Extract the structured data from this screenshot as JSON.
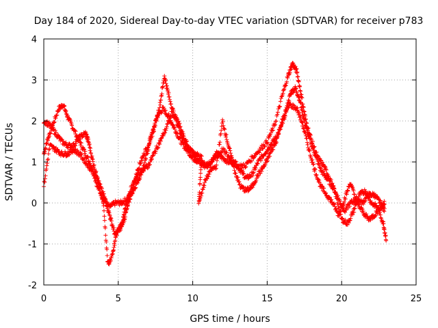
{
  "chart_data": {
    "type": "scatter",
    "title": "Day 184 of 2020, Sidereal Day-to-day VTEC variation (SDTVAR) for receiver p783",
    "xlabel": "GPS time / hours",
    "ylabel": "SDTVAR / TECUs",
    "xlim": [
      0,
      25
    ],
    "ylim": [
      -2,
      4
    ],
    "xticks": [
      "0",
      "5",
      "10",
      "15",
      "20",
      "25"
    ],
    "yticks": [
      "-2",
      "-1",
      "0",
      "1",
      "2",
      "3",
      "4"
    ],
    "grid": true,
    "marker": "+",
    "series": [
      {
        "name": "SDTVAR",
        "color": "#ff0000",
        "tracks": [
          [
            [
              0.0,
              1.2
            ],
            [
              0.3,
              1.6
            ],
            [
              0.6,
              1.9
            ],
            [
              1.0,
              2.3
            ],
            [
              1.3,
              2.4
            ],
            [
              1.6,
              2.1
            ],
            [
              2.0,
              1.8
            ],
            [
              2.4,
              1.5
            ],
            [
              2.8,
              1.2
            ],
            [
              3.2,
              0.9
            ],
            [
              3.6,
              0.4
            ],
            [
              4.0,
              0.1
            ],
            [
              4.4,
              -0.1
            ],
            [
              4.8,
              0.0
            ],
            [
              5.2,
              0.0
            ],
            [
              5.6,
              0.1
            ],
            [
              6.0,
              0.3
            ],
            [
              6.4,
              0.6
            ],
            [
              6.8,
              1.0
            ],
            [
              7.2,
              1.6
            ],
            [
              7.6,
              2.1
            ],
            [
              8.0,
              2.3
            ],
            [
              8.4,
              2.1
            ],
            [
              8.8,
              1.8
            ],
            [
              9.2,
              1.5
            ],
            [
              9.6,
              1.3
            ],
            [
              10.0,
              1.1
            ],
            [
              10.4,
              1.0
            ],
            [
              10.8,
              0.9
            ],
            [
              11.2,
              1.0
            ],
            [
              11.6,
              1.2
            ],
            [
              12.0,
              1.1
            ],
            [
              12.4,
              1.0
            ],
            [
              12.8,
              1.0
            ],
            [
              13.2,
              0.8
            ],
            [
              13.6,
              0.6
            ],
            [
              14.0,
              0.7
            ],
            [
              14.4,
              1.0
            ],
            [
              14.8,
              1.2
            ],
            [
              15.2,
              1.4
            ],
            [
              15.6,
              1.6
            ],
            [
              16.0,
              1.9
            ],
            [
              16.3,
              2.3
            ],
            [
              16.6,
              2.7
            ],
            [
              16.9,
              2.8
            ],
            [
              17.2,
              2.5
            ],
            [
              17.5,
              2.0
            ],
            [
              17.8,
              1.6
            ],
            [
              18.2,
              1.2
            ],
            [
              18.6,
              0.8
            ],
            [
              19.0,
              0.6
            ],
            [
              19.4,
              0.4
            ],
            [
              19.8,
              0.1
            ],
            [
              20.2,
              -0.2
            ],
            [
              20.6,
              0.0
            ],
            [
              21.0,
              0.1
            ],
            [
              21.4,
              0.0
            ],
            [
              21.8,
              0.2
            ],
            [
              22.2,
              0.2
            ],
            [
              22.6,
              0.0
            ],
            [
              22.9,
              -0.2
            ]
          ],
          [
            [
              0.0,
              2.0
            ],
            [
              0.4,
              1.9
            ],
            [
              0.8,
              1.7
            ],
            [
              1.2,
              1.5
            ],
            [
              1.6,
              1.4
            ],
            [
              2.0,
              1.4
            ],
            [
              2.4,
              1.6
            ],
            [
              2.8,
              1.7
            ],
            [
              3.0,
              1.5
            ],
            [
              3.3,
              1.0
            ],
            [
              3.6,
              0.6
            ],
            [
              3.9,
              0.3
            ],
            [
              4.2,
              0.0
            ],
            [
              4.5,
              -0.4
            ],
            [
              4.8,
              -0.8
            ],
            [
              5.1,
              -0.6
            ],
            [
              5.4,
              -0.4
            ],
            [
              5.7,
              0.0
            ],
            [
              6.0,
              0.4
            ],
            [
              6.3,
              0.8
            ],
            [
              6.6,
              1.1
            ],
            [
              7.0,
              1.4
            ],
            [
              7.4,
              1.8
            ],
            [
              7.8,
              2.4
            ],
            [
              8.1,
              3.1
            ],
            [
              8.4,
              2.6
            ],
            [
              8.8,
              2.1
            ],
            [
              9.2,
              1.7
            ],
            [
              9.6,
              1.4
            ],
            [
              10.0,
              1.2
            ],
            [
              10.5,
              1.0
            ],
            [
              11.0,
              0.9
            ],
            [
              11.5,
              1.1
            ],
            [
              12.0,
              1.3
            ],
            [
              12.5,
              1.1
            ],
            [
              13.0,
              0.9
            ],
            [
              13.5,
              0.9
            ],
            [
              14.0,
              1.1
            ],
            [
              14.5,
              1.3
            ],
            [
              15.0,
              1.5
            ],
            [
              15.5,
              1.9
            ],
            [
              16.0,
              2.6
            ],
            [
              16.4,
              3.1
            ],
            [
              16.7,
              3.4
            ],
            [
              17.0,
              3.2
            ],
            [
              17.3,
              2.6
            ],
            [
              17.6,
              2.0
            ],
            [
              18.0,
              1.5
            ],
            [
              18.4,
              1.1
            ],
            [
              18.8,
              0.9
            ],
            [
              19.2,
              0.6
            ],
            [
              19.6,
              0.2
            ],
            [
              20.0,
              -0.4
            ],
            [
              20.4,
              -0.5
            ],
            [
              20.8,
              -0.2
            ],
            [
              21.2,
              0.2
            ],
            [
              21.6,
              0.3
            ],
            [
              22.0,
              0.0
            ],
            [
              22.4,
              -0.1
            ],
            [
              22.8,
              -0.5
            ],
            [
              23.0,
              -0.9
            ]
          ],
          [
            [
              0.0,
              0.4
            ],
            [
              0.4,
              1.4
            ],
            [
              0.8,
              1.3
            ],
            [
              1.2,
              1.2
            ],
            [
              1.6,
              1.2
            ],
            [
              2.0,
              1.3
            ],
            [
              2.4,
              1.2
            ],
            [
              2.8,
              1.0
            ],
            [
              3.2,
              0.8
            ],
            [
              3.6,
              0.6
            ],
            [
              4.0,
              0.0
            ],
            [
              4.3,
              -1.5
            ],
            [
              4.6,
              -1.3
            ],
            [
              4.9,
              -0.7
            ],
            [
              5.2,
              -0.6
            ],
            [
              5.5,
              -0.1
            ],
            [
              5.8,
              0.3
            ],
            [
              6.2,
              0.6
            ],
            [
              6.6,
              0.8
            ],
            [
              7.0,
              0.9
            ],
            [
              7.4,
              1.2
            ],
            [
              7.8,
              1.5
            ],
            [
              8.2,
              1.8
            ],
            [
              8.6,
              2.2
            ],
            [
              9.0,
              2.0
            ],
            [
              9.4,
              1.6
            ],
            [
              9.8,
              1.3
            ],
            [
              10.2,
              1.2
            ],
            [
              10.6,
              1.1
            ],
            [
              10.4,
              0.0
            ],
            [
              10.8,
              0.5
            ],
            [
              11.2,
              0.8
            ],
            [
              11.6,
              0.9
            ],
            [
              12.0,
              2.0
            ],
            [
              12.4,
              1.4
            ],
            [
              12.8,
              0.8
            ],
            [
              13.2,
              0.4
            ],
            [
              13.6,
              0.3
            ],
            [
              14.0,
              0.4
            ],
            [
              14.4,
              0.7
            ],
            [
              14.8,
              0.9
            ],
            [
              15.2,
              1.2
            ],
            [
              15.6,
              1.5
            ],
            [
              16.0,
              2.0
            ],
            [
              16.5,
              2.4
            ],
            [
              17.0,
              2.3
            ],
            [
              17.4,
              1.9
            ],
            [
              17.8,
              1.3
            ],
            [
              18.2,
              0.8
            ],
            [
              18.6,
              0.4
            ],
            [
              19.0,
              0.2
            ],
            [
              19.4,
              0.0
            ],
            [
              19.8,
              -0.3
            ],
            [
              20.2,
              0.1
            ],
            [
              20.6,
              0.5
            ],
            [
              21.0,
              0.0
            ],
            [
              21.4,
              -0.2
            ],
            [
              21.8,
              -0.4
            ],
            [
              22.2,
              -0.3
            ],
            [
              22.6,
              -0.1
            ],
            [
              22.9,
              0.0
            ]
          ]
        ]
      }
    ]
  }
}
